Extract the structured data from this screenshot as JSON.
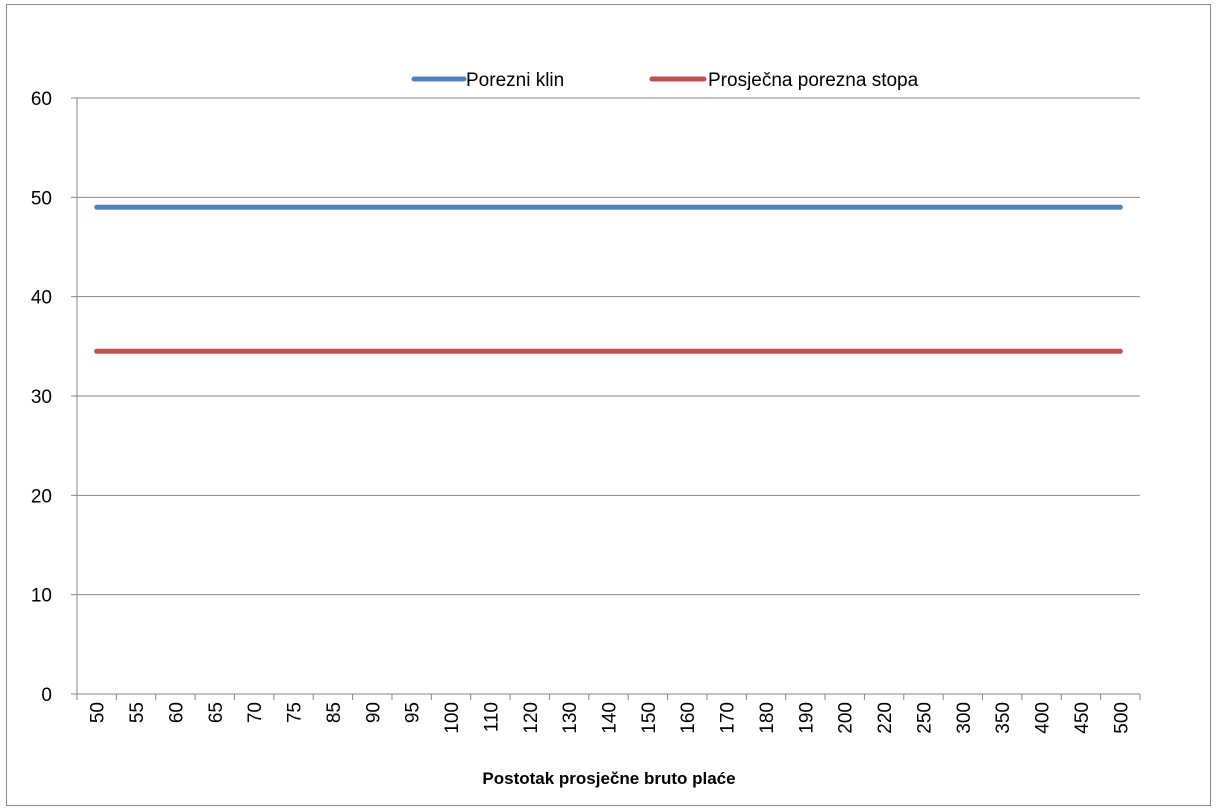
{
  "chart_data": {
    "type": "line",
    "title": "",
    "xlabel": "Postotak prosječne bruto plaće",
    "ylabel": "",
    "ylim": [
      0,
      60
    ],
    "yticks": [
      0,
      10,
      20,
      30,
      40,
      50,
      60
    ],
    "grid": true,
    "legend_position": "top",
    "categories": [
      "50",
      "55",
      "60",
      "65",
      "70",
      "75",
      "85",
      "90",
      "95",
      "100",
      "110",
      "120",
      "130",
      "140",
      "150",
      "160",
      "170",
      "180",
      "190",
      "200",
      "220",
      "250",
      "300",
      "350",
      "400",
      "450",
      "500"
    ],
    "series": [
      {
        "name": "Porezni klin",
        "color": "#4f81bd",
        "values": [
          49,
          49,
          49,
          49,
          49,
          49,
          49,
          49,
          49,
          49,
          49,
          49,
          49,
          49,
          49,
          49,
          49,
          49,
          49,
          49,
          49,
          49,
          49,
          49,
          49,
          49,
          49
        ]
      },
      {
        "name": "Prosječna porezna stopa",
        "color": "#c0504d",
        "values": [
          34.5,
          34.5,
          34.5,
          34.5,
          34.5,
          34.5,
          34.5,
          34.5,
          34.5,
          34.5,
          34.5,
          34.5,
          34.5,
          34.5,
          34.5,
          34.5,
          34.5,
          34.5,
          34.5,
          34.5,
          34.5,
          34.5,
          34.5,
          34.5,
          34.5,
          34.5,
          34.5
        ]
      }
    ]
  }
}
